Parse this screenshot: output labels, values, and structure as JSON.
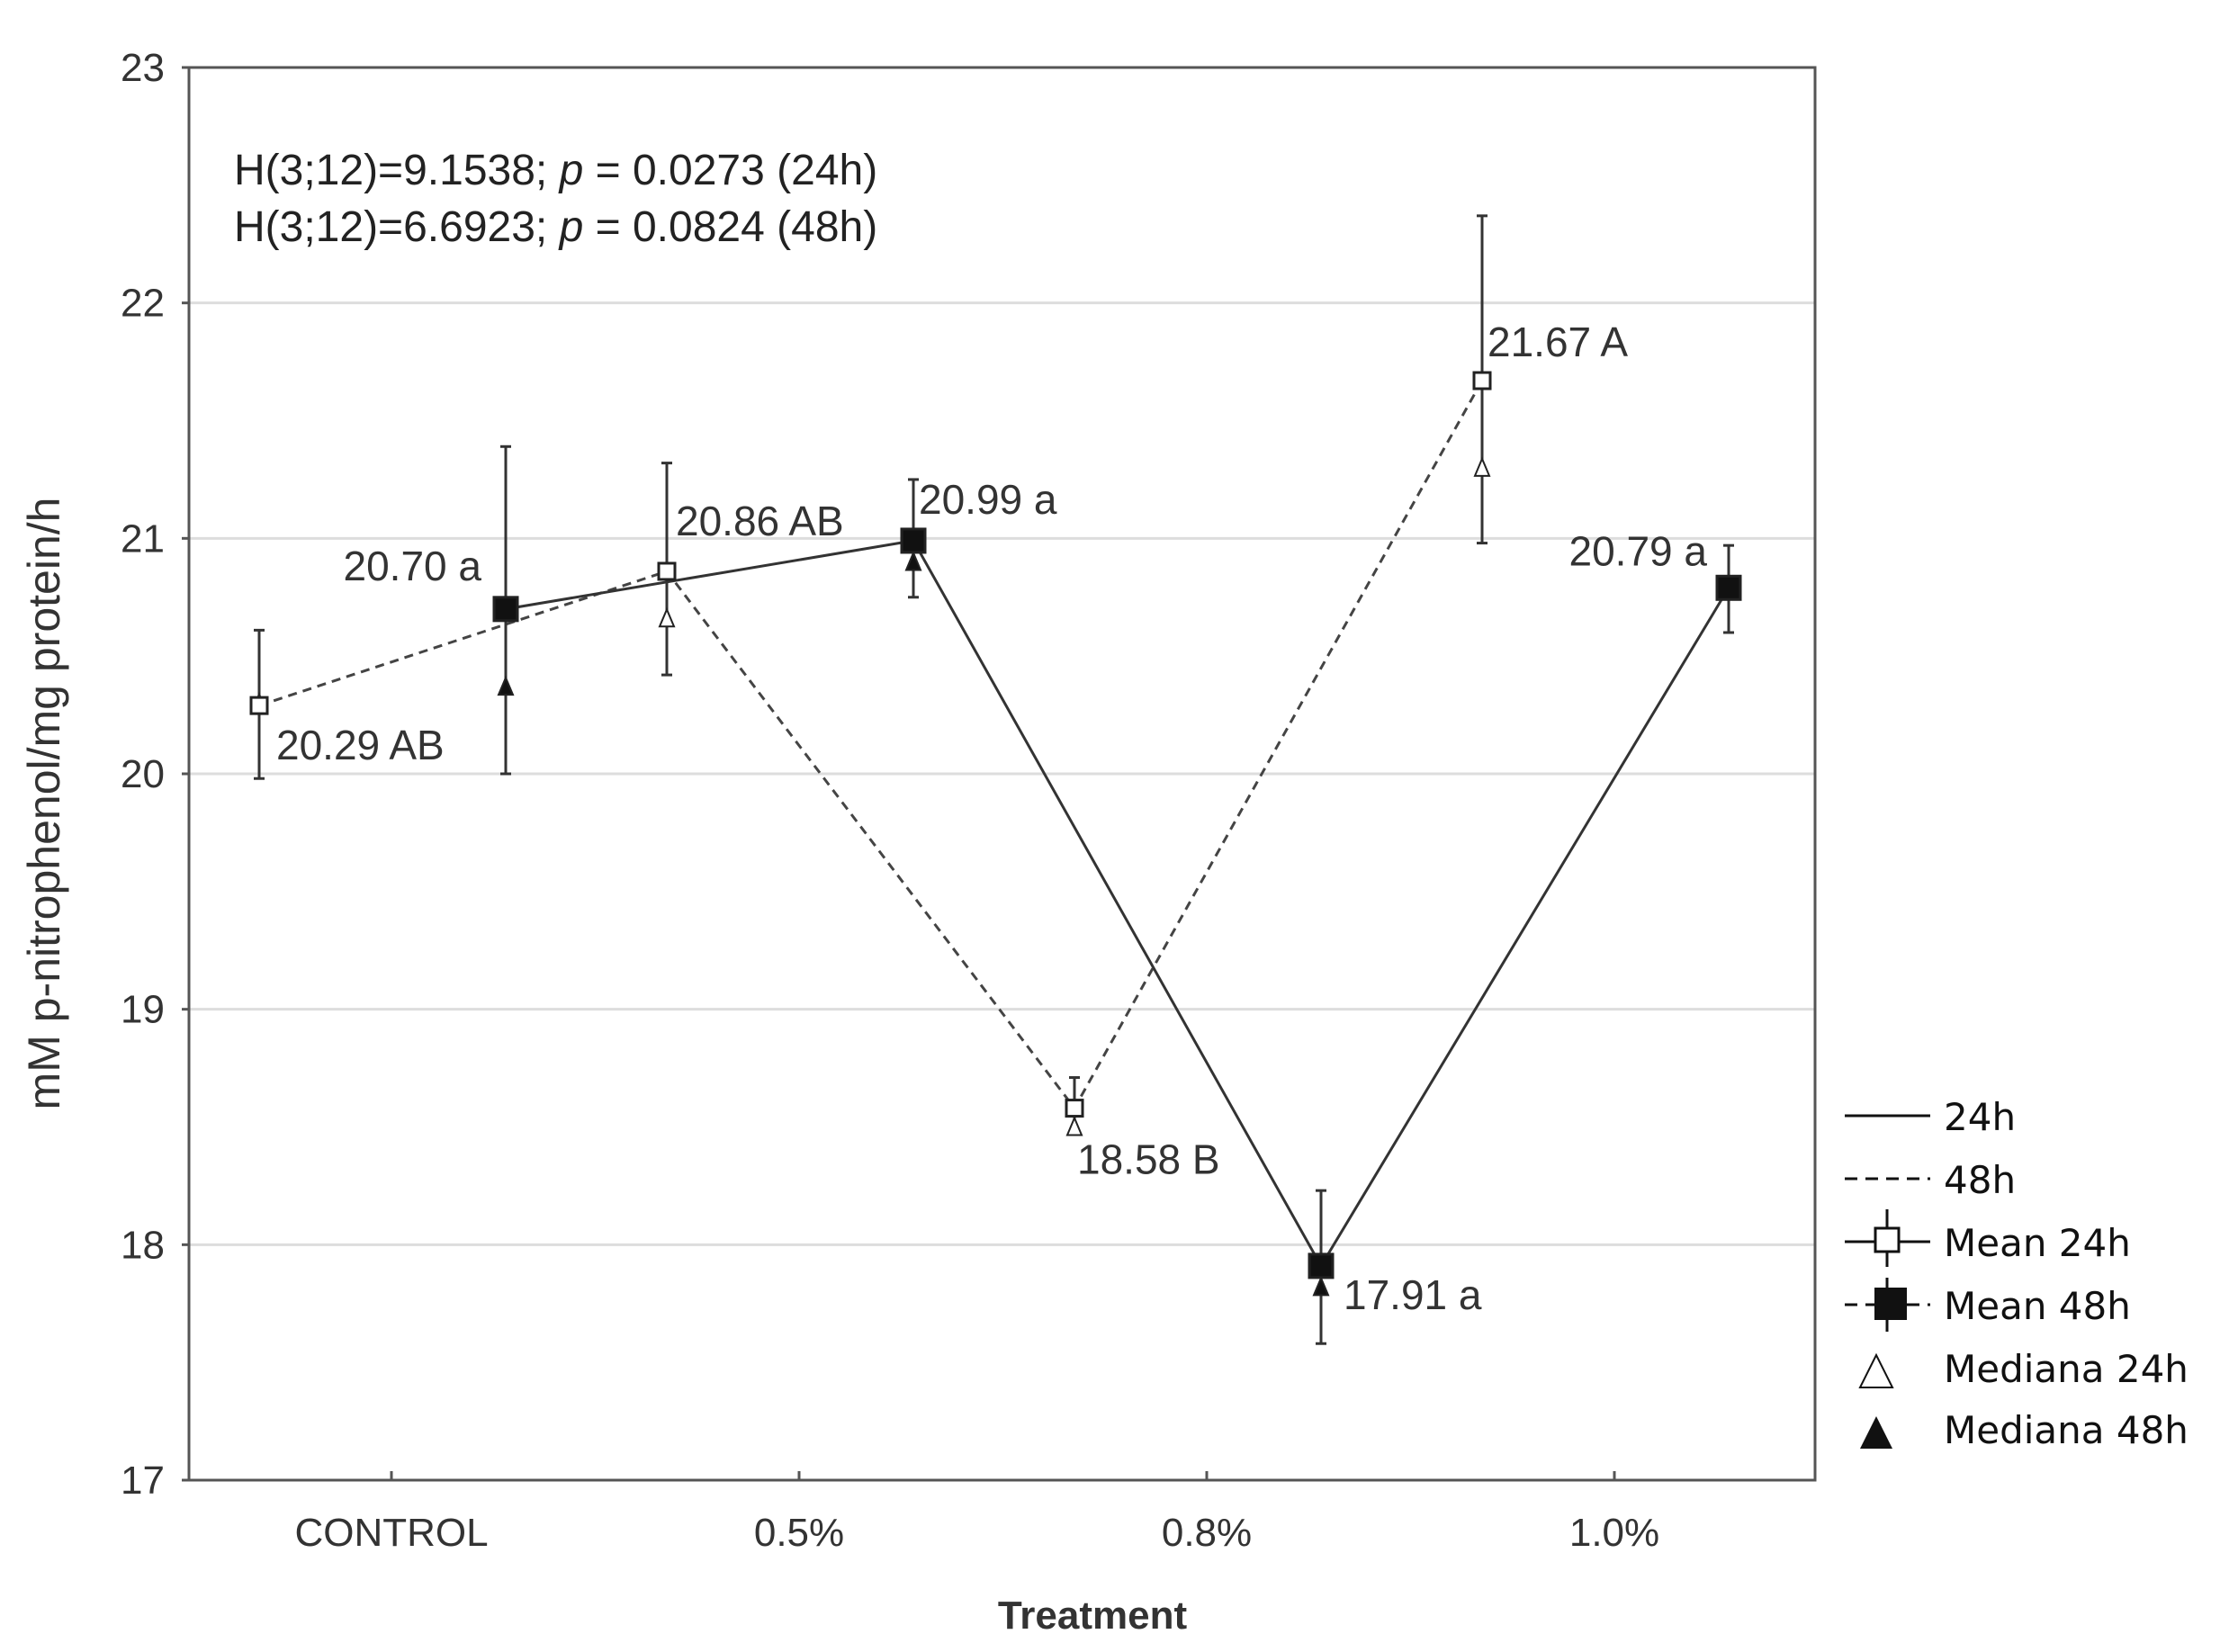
{
  "chart_data": {
    "type": "line",
    "xlabel": "Treatment",
    "ylabel": "mM p-nitrophenol/mg protein/h",
    "ylim": [
      17,
      23
    ],
    "yticks": [
      "17",
      "18",
      "19",
      "20",
      "21",
      "22",
      "23"
    ],
    "categories": [
      "CONTROL",
      "0.5%",
      "0.8%",
      "1.0%"
    ],
    "grid": true,
    "legend_position": "right-bottom-outside",
    "annotations": [
      {
        "prefix": "H(3;12)=9.1538; ",
        "p": "p",
        "suffix": " = 0.0273 (24h)"
      },
      {
        "prefix": "H(3;12)=6.6923; ",
        "p": "p",
        "suffix": " = 0.0824 (48h)"
      }
    ],
    "series": [
      {
        "name": "Mean 24h",
        "line": "dashed",
        "marker": "open-square",
        "values": [
          20.29,
          20.86,
          18.58,
          21.67
        ],
        "err_low": [
          19.98,
          20.42,
          18.48,
          20.98
        ],
        "err_high": [
          20.61,
          21.32,
          18.71,
          22.37
        ],
        "labels": [
          "20.29 AB",
          "20.86 AB",
          "18.58 B",
          "21.67 A"
        ]
      },
      {
        "name": "Mean 48h",
        "line": "solid",
        "marker": "filled-square",
        "values": [
          20.7,
          20.99,
          17.91,
          20.79
        ],
        "err_low": [
          20.0,
          20.75,
          17.58,
          20.6
        ],
        "err_high": [
          21.39,
          21.25,
          18.23,
          20.97
        ],
        "labels": [
          "20.70 a",
          "20.99 a",
          "17.91 a",
          "20.79 a"
        ]
      },
      {
        "name": "Mediana 24h",
        "marker": "open-triangle",
        "values": [
          20.3,
          20.66,
          18.5,
          21.3
        ]
      },
      {
        "name": "Mediana 48h",
        "marker": "filled-triangle",
        "values": [
          20.37,
          20.9,
          17.82,
          20.78
        ]
      }
    ],
    "legend": [
      "24h",
      "48h",
      "Mean 24h",
      "Mean 48h",
      "Mediana 24h",
      "Mediana 48h"
    ]
  }
}
